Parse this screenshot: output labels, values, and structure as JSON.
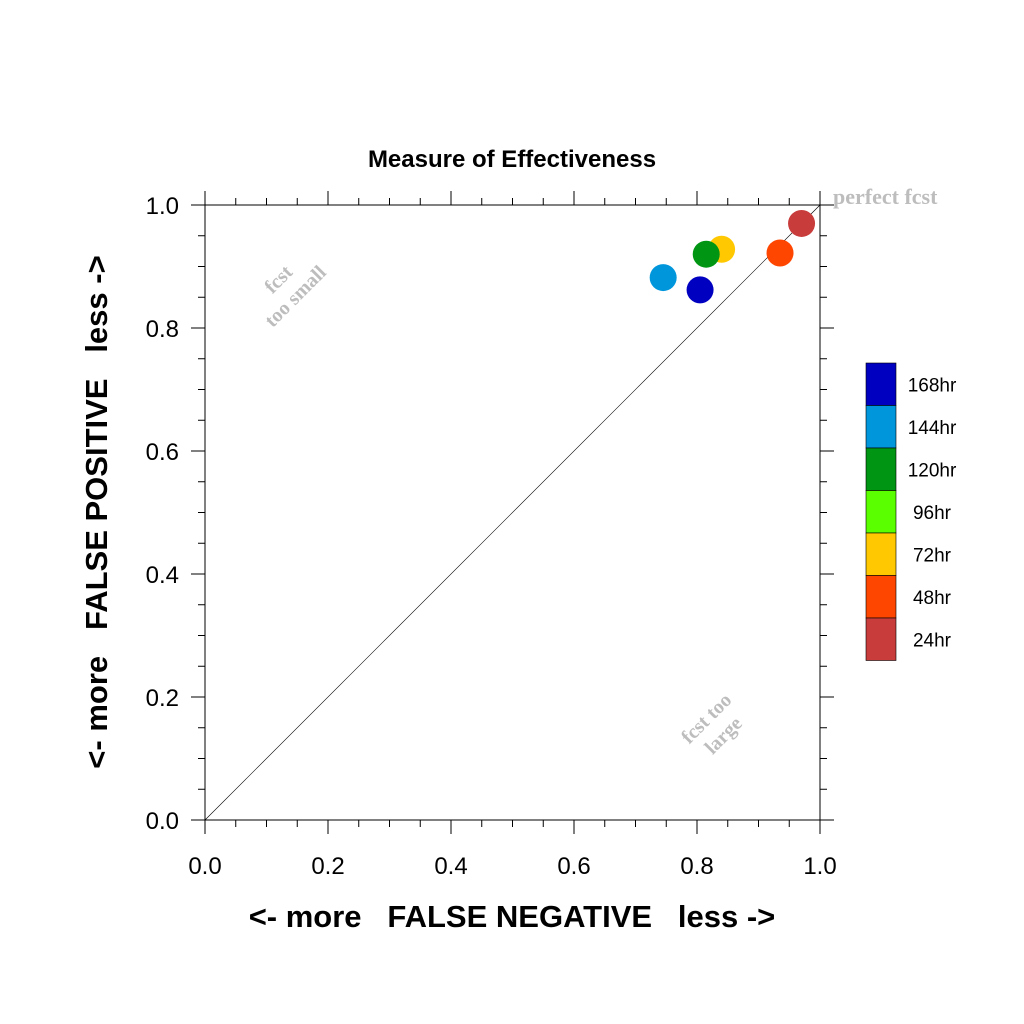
{
  "chart_data": {
    "type": "scatter",
    "title": "Measure of Effectiveness",
    "xlabel": "<- more   FALSE NEGATIVE   less ->",
    "ylabel": "<- more   FALSE POSITIVE   less ->",
    "xlim": [
      0.0,
      1.0
    ],
    "ylim": [
      0.0,
      1.0
    ],
    "x_ticks": [
      "0.0",
      "0.2",
      "0.4",
      "0.6",
      "0.8",
      "1.0"
    ],
    "y_ticks": [
      "0.0",
      "0.2",
      "0.4",
      "0.6",
      "0.8",
      "1.0"
    ],
    "grid": false,
    "diagonal_line": true,
    "annotations": {
      "perfect": "perfect fcst",
      "too_small": [
        "fcst",
        "too small"
      ],
      "too_large": [
        "fcst too",
        "large"
      ]
    },
    "legend": {
      "placement": "right",
      "entries": [
        {
          "label": "168hr",
          "color": "#0000c0"
        },
        {
          "label": "144hr",
          "color": "#0096dc"
        },
        {
          "label": "120hr",
          "color": "#009614"
        },
        {
          "label": "96hr",
          "color": "#5aff00"
        },
        {
          "label": "72hr",
          "color": "#ffc800"
        },
        {
          "label": "48hr",
          "color": "#ff4600"
        },
        {
          "label": "24hr",
          "color": "#c83c3c"
        }
      ]
    },
    "points": [
      {
        "series": "144hr",
        "x": 0.745,
        "y": 0.882,
        "color": "#0096dc"
      },
      {
        "series": "168hr",
        "x": 0.805,
        "y": 0.862,
        "color": "#0000c0"
      },
      {
        "series": "72hr",
        "x": 0.84,
        "y": 0.928,
        "color": "#ffc800"
      },
      {
        "series": "120hr",
        "x": 0.815,
        "y": 0.92,
        "color": "#009614"
      },
      {
        "series": "48hr",
        "x": 0.935,
        "y": 0.922,
        "color": "#ff4600"
      },
      {
        "series": "24hr",
        "x": 0.97,
        "y": 0.97,
        "color": "#c83c3c"
      }
    ]
  }
}
